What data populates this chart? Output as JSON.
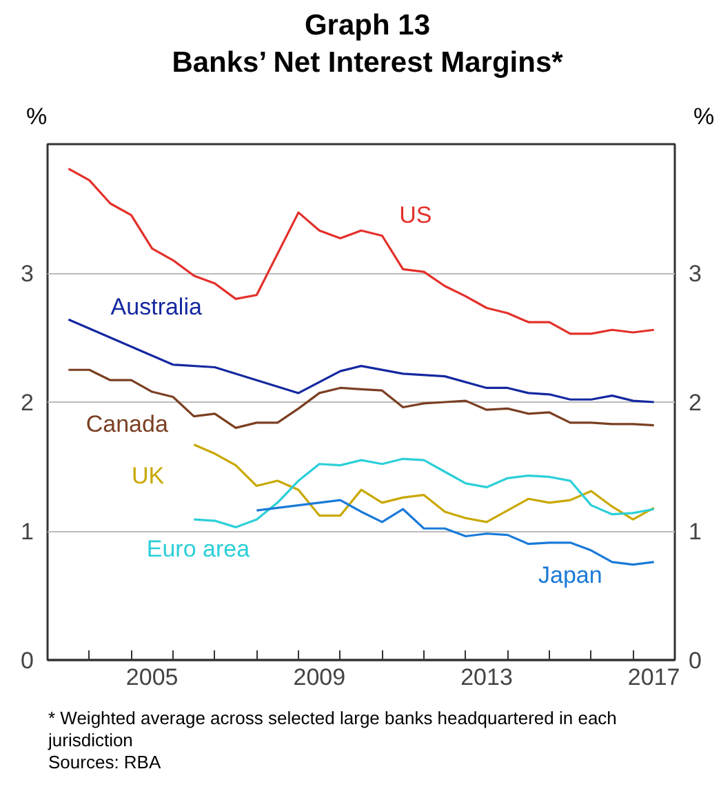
{
  "chart_data": {
    "type": "line",
    "title": "Graph 13",
    "subtitle": "Banks’ Net Interest Margins*",
    "ylabel": "%",
    "y2label": "%",
    "xlim": [
      2003,
      2018
    ],
    "ylim": [
      0,
      4
    ],
    "y2lim": [
      0,
      4
    ],
    "yticks": [
      0,
      1,
      2,
      3
    ],
    "y2ticks": [
      0,
      1,
      2,
      3
    ],
    "xticks": [
      {
        "value": 2004,
        "label": null
      },
      {
        "value": 2005,
        "label": null
      },
      {
        "value": 2005.5,
        "label": "2005"
      },
      {
        "value": 2006,
        "label": null
      },
      {
        "value": 2007,
        "label": null
      },
      {
        "value": 2008,
        "label": null
      },
      {
        "value": 2009,
        "label": null
      },
      {
        "value": 2009.5,
        "label": "2009"
      },
      {
        "value": 2010,
        "label": null
      },
      {
        "value": 2011,
        "label": null
      },
      {
        "value": 2012,
        "label": null
      },
      {
        "value": 2013,
        "label": null
      },
      {
        "value": 2013.5,
        "label": "2013"
      },
      {
        "value": 2014,
        "label": null
      },
      {
        "value": 2015,
        "label": null
      },
      {
        "value": 2016,
        "label": null
      },
      {
        "value": 2017,
        "label": null
      },
      {
        "value": 2017.5,
        "label": "2017"
      }
    ],
    "grid": "y",
    "marker": "none",
    "line_style": "solid",
    "series": [
      {
        "name": "US",
        "color": "#e3302a",
        "x": [
          2003.5,
          2004,
          2004.5,
          2005,
          2005.5,
          2006,
          2006.5,
          2007,
          2007.5,
          2008,
          2009,
          2009.5,
          2010,
          2010.5,
          2011,
          2011.5,
          2012,
          2012.5,
          2013,
          2013.5,
          2014,
          2014.5,
          2015,
          2015.5,
          2016,
          2016.5,
          2017,
          2017.5
        ],
        "values": [
          3.81,
          3.72,
          3.54,
          3.45,
          3.19,
          3.1,
          2.98,
          2.92,
          2.8,
          2.83,
          3.47,
          3.33,
          3.27,
          3.33,
          3.29,
          3.03,
          3.01,
          2.9,
          2.82,
          2.73,
          2.69,
          2.62,
          2.62,
          2.53,
          2.53,
          2.56,
          2.54,
          2.56
        ]
      },
      {
        "name": "Australia",
        "color": "#1428a0",
        "x": [
          2003.5,
          2006,
          2007,
          2008,
          2009,
          2010,
          2010.5,
          2011.5,
          2012.5,
          2013.5,
          2014,
          2014.5,
          2015,
          2015.5,
          2016,
          2016.5,
          2017,
          2017.5
        ],
        "values": [
          2.64,
          2.29,
          2.27,
          2.17,
          2.07,
          2.24,
          2.28,
          2.22,
          2.2,
          2.11,
          2.11,
          2.07,
          2.06,
          2.02,
          2.02,
          2.05,
          2.01,
          2.0
        ]
      },
      {
        "name": "Canada",
        "color": "#7b3f22",
        "x": [
          2003.5,
          2004,
          2004.5,
          2005,
          2005.5,
          2006,
          2006.5,
          2007,
          2007.5,
          2008,
          2008.5,
          2009,
          2009.5,
          2010,
          2010.5,
          2011,
          2011.5,
          2012,
          2012.5,
          2013,
          2013.5,
          2014,
          2014.5,
          2015,
          2015.5,
          2016,
          2016.5,
          2017,
          2017.5
        ],
        "values": [
          2.25,
          2.25,
          2.17,
          2.17,
          2.08,
          2.04,
          1.89,
          1.91,
          1.8,
          1.84,
          1.84,
          1.95,
          2.07,
          2.11,
          2.1,
          2.09,
          1.96,
          1.99,
          2.0,
          2.01,
          1.94,
          1.95,
          1.91,
          1.92,
          1.84,
          1.84,
          1.83,
          1.83,
          1.82
        ]
      },
      {
        "name": "UK",
        "color": "#c9a800",
        "x": [
          2006.5,
          2007,
          2007.5,
          2008,
          2008.5,
          2009,
          2009.5,
          2010,
          2010.5,
          2011,
          2011.5,
          2012,
          2012.5,
          2013,
          2013.5,
          2014,
          2014.5,
          2015,
          2015.5,
          2016,
          2016.5,
          2017,
          2017.5
        ],
        "values": [
          1.67,
          1.6,
          1.51,
          1.35,
          1.39,
          1.32,
          1.12,
          1.12,
          1.32,
          1.22,
          1.26,
          1.28,
          1.15,
          1.1,
          1.07,
          1.16,
          1.25,
          1.22,
          1.24,
          1.31,
          1.19,
          1.09,
          1.18
        ]
      },
      {
        "name": "Euro area",
        "color": "#2ccfd8",
        "x": [
          2006.5,
          2007,
          2007.5,
          2008,
          2008.5,
          2009,
          2009.5,
          2010,
          2010.5,
          2011,
          2011.5,
          2012,
          2012.5,
          2013,
          2013.5,
          2014,
          2014.5,
          2015,
          2015.5,
          2016,
          2016.5,
          2017,
          2017.5
        ],
        "values": [
          1.09,
          1.08,
          1.03,
          1.09,
          1.22,
          1.39,
          1.52,
          1.51,
          1.55,
          1.52,
          1.56,
          1.55,
          1.46,
          1.37,
          1.34,
          1.41,
          1.43,
          1.42,
          1.39,
          1.2,
          1.13,
          1.14,
          1.17
        ]
      },
      {
        "name": "Japan",
        "color": "#1a7ad8",
        "x": [
          2008,
          2008.5,
          2009,
          2009.5,
          2010,
          2010.5,
          2011,
          2011.5,
          2012,
          2012.5,
          2013,
          2013.5,
          2014,
          2014.5,
          2015,
          2015.5,
          2016,
          2016.5,
          2017,
          2017.5
        ],
        "values": [
          1.16,
          1.18,
          1.2,
          1.22,
          1.24,
          1.15,
          1.07,
          1.17,
          1.02,
          1.02,
          0.96,
          0.98,
          0.97,
          0.9,
          0.91,
          0.91,
          0.85,
          0.76,
          0.74,
          0.76
        ]
      }
    ],
    "annotations": [
      "* Weighted average across selected large banks headquartered in each jurisdiction",
      "Sources: RBA"
    ]
  }
}
